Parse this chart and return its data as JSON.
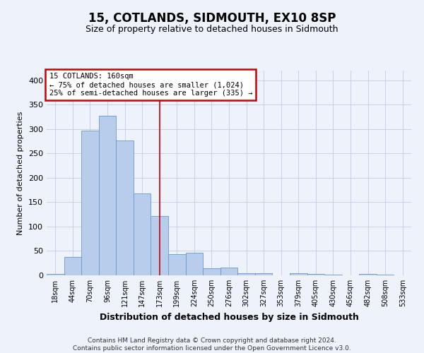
{
  "title": "15, COTLANDS, SIDMOUTH, EX10 8SP",
  "subtitle": "Size of property relative to detached houses in Sidmouth",
  "xlabel": "Distribution of detached houses by size in Sidmouth",
  "ylabel": "Number of detached properties",
  "categories": [
    "18sqm",
    "44sqm",
    "70sqm",
    "96sqm",
    "121sqm",
    "147sqm",
    "173sqm",
    "199sqm",
    "224sqm",
    "250sqm",
    "276sqm",
    "302sqm",
    "327sqm",
    "353sqm",
    "379sqm",
    "405sqm",
    "430sqm",
    "456sqm",
    "482sqm",
    "508sqm",
    "533sqm"
  ],
  "values": [
    3,
    38,
    297,
    328,
    277,
    168,
    122,
    43,
    46,
    15,
    16,
    4,
    5,
    0,
    5,
    3,
    1,
    0,
    3,
    1,
    0
  ],
  "bar_color": "#b8ccec",
  "bar_edge_color": "#6699cc",
  "annotation_label": "15 COTLANDS: 160sqm",
  "annotation_line1": "← 75% of detached houses are smaller (1,024)",
  "annotation_line2": "25% of semi-detached houses are larger (335) →",
  "annotation_box_color": "white",
  "annotation_box_edge": "#cc0000",
  "vline_color": "#cc0000",
  "vline_x_index": 6,
  "footer": "Contains HM Land Registry data © Crown copyright and database right 2024.\nContains public sector information licensed under the Open Government Licence v3.0.",
  "bg_color": "#eef2fa",
  "grid_color": "#c8d0e8",
  "ylim": [
    0,
    420
  ],
  "yticks": [
    0,
    50,
    100,
    150,
    200,
    250,
    300,
    350,
    400
  ]
}
